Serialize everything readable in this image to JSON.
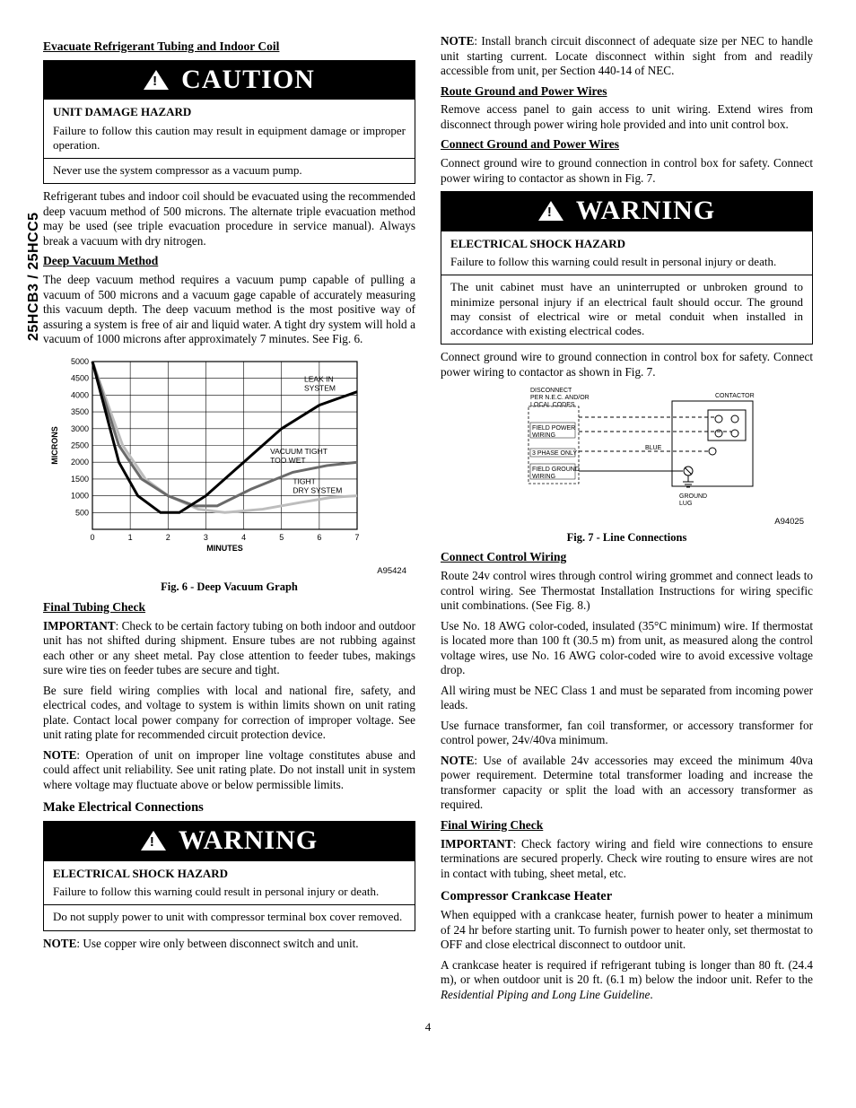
{
  "side_tab": "25HCB3 / 25HCC5",
  "page_number": "4",
  "left": {
    "h1": "Evacuate Refrigerant Tubing and Indoor Coil",
    "caution": {
      "banner": "CAUTION",
      "hazard": "UNIT DAMAGE HAZARD",
      "p1": "Failure to follow this caution may result in equipment damage or improper operation.",
      "p2": "Never use the system compressor as a vacuum pump."
    },
    "p_evac": "Refrigerant tubes and indoor coil should be evacuated using the recommended deep vacuum method of 500 microns. The alternate triple evacuation method may be used (see triple evacuation procedure in service manual). Always break a vacuum with dry nitrogen.",
    "h2": "Deep Vacuum Method",
    "p_deep": "The deep vacuum method requires a vacuum pump capable of pulling a vacuum of 500 microns and a vacuum gage capable of accurately measuring this vacuum depth. The deep vacuum method is the most positive way of assuring a system is free of air and liquid water. A tight dry system will hold a vacuum of 1000 microns after approximately 7 minutes.  See Fig. 6.",
    "chart": {
      "y_label": "MICRONS",
      "x_label": "MINUTES",
      "y_ticks": [
        "500",
        "1000",
        "1500",
        "2000",
        "2500",
        "3000",
        "3500",
        "4000",
        "4500",
        "5000"
      ],
      "x_ticks": [
        "0",
        "1",
        "2",
        "3",
        "4",
        "5",
        "6",
        "7"
      ],
      "ylim": [
        0,
        5000
      ],
      "xlim": [
        0,
        7
      ],
      "annotations": {
        "leak": "LEAK IN\nSYSTEM",
        "wet": "VACUUM TIGHT\nTOO WET",
        "dry": "TIGHT\nDRY SYSTEM"
      },
      "series": {
        "leak": {
          "color": "#000000",
          "width": 3,
          "points": [
            [
              0,
              5000
            ],
            [
              0.7,
              2000
            ],
            [
              1.2,
              1000
            ],
            [
              1.8,
              500
            ],
            [
              2.3,
              500
            ],
            [
              3.0,
              1000
            ],
            [
              4.0,
              2000
            ],
            [
              5.0,
              3000
            ],
            [
              6.0,
              3700
            ],
            [
              7.0,
              4100
            ]
          ]
        },
        "wet": {
          "color": "#6a6a6a",
          "width": 3,
          "points": [
            [
              0,
              5000
            ],
            [
              0.7,
              2500
            ],
            [
              1.3,
              1500
            ],
            [
              2.0,
              1000
            ],
            [
              2.7,
              700
            ],
            [
              3.3,
              700
            ],
            [
              4.2,
              1200
            ],
            [
              5.3,
              1700
            ],
            [
              6.2,
              1900
            ],
            [
              7.0,
              2000
            ]
          ]
        },
        "dry": {
          "color": "#bdbdbd",
          "width": 3,
          "points": [
            [
              0,
              5000
            ],
            [
              0.8,
              2500
            ],
            [
              1.4,
              1500
            ],
            [
              2.0,
              1000
            ],
            [
              2.8,
              600
            ],
            [
              3.5,
              500
            ],
            [
              4.5,
              600
            ],
            [
              5.5,
              800
            ],
            [
              6.3,
              950
            ],
            [
              7.0,
              1000
            ]
          ]
        }
      },
      "grid_color": "#000000",
      "bg": "#ffffff"
    },
    "fig6_id": "A95424",
    "fig6_caption": "Fig. 6 - Deep Vacuum Graph",
    "h3": "Final Tubing Check",
    "p_ft1_lead": "IMPORTANT",
    "p_ft1": ": Check to be certain factory tubing on both indoor and outdoor unit has not shifted during shipment. Ensure tubes are not rubbing against each other or any sheet metal. Pay close attention to feeder tubes, makings sure wire ties on feeder tubes are secure and tight.",
    "p_ft2": "Be sure field wiring complies with local and national fire, safety, and electrical codes, and voltage to system is within limits shown on unit rating plate. Contact local power company for correction of improper voltage. See unit rating plate for recommended circuit protection device.",
    "p_ft3_lead": "NOTE",
    "p_ft3": ":  Operation of unit on improper line voltage constitutes abuse and could affect unit reliability. See unit rating plate. Do  not install unit in system where voltage may fluctuate above or below permissible limits.",
    "h4": "Make Electrical Connections",
    "warning": {
      "banner": "WARNING",
      "hazard": "ELECTRICAL SHOCK HAZARD",
      "p1": "Failure to follow this warning could result in personal injury or death.",
      "p2": "Do not supply power to unit with compressor terminal box cover removed."
    },
    "p_note_copper_lead": "NOTE",
    "p_note_copper": ":  Use copper wire only between disconnect switch and unit."
  },
  "right": {
    "p_note_branch_lead": "NOTE",
    "p_note_branch": ": Install branch circuit disconnect of adequate size per NEC to handle unit starting current. Locate disconnect within sight from and readily accessible from unit, per Section 440-14 of NEC.",
    "h1": "Route Ground and Power Wires",
    "p_route": "Remove access panel to gain access to unit wiring. Extend wires from disconnect through power wiring hole provided and into unit control box.",
    "h2": "Connect Ground and Power Wires",
    "p_conn1": "Connect ground wire to ground connection in control box for safety. Connect power wiring to contactor as shown in Fig. 7.",
    "warning": {
      "banner": "WARNING",
      "hazard": "ELECTRICAL SHOCK HAZARD",
      "p1": "Failure to follow this warning could result in personal injury or death.",
      "p2": "The unit cabinet must have an uninterrupted or unbroken ground to minimize personal injury if an electrical fault should occur. The ground may consist of electrical wire or metal conduit when installed in accordance with existing electrical codes."
    },
    "p_conn2": "Connect ground wire to ground connection in control box for safety. Connect power wiring to contactor as shown in Fig. 7.",
    "diagram": {
      "labels": {
        "disconnect": "DISCONNECT\nPER N.E.C. AND/OR\nLOCAL CODES",
        "contactor": "CONTACTOR",
        "field_power": "FIELD POWER\nWIRING",
        "three_phase": "3 PHASE ONLY",
        "blue": "BLUE",
        "field_ground": "FIELD GROUND\nWIRING",
        "ground_lug": "GROUND\nLUG"
      }
    },
    "fig7_id": "A94025",
    "fig7_caption": "Fig. 7 - Line Connections",
    "h3": "Connect Control Wiring",
    "p_cc1": "Route 24v control wires through control wiring grommet and connect leads to control wiring. See Thermostat Installation Instructions for wiring specific unit combinations. (See Fig. 8.)",
    "p_cc2": "Use No. 18 AWG color-coded, insulated (35°C minimum) wire. If thermostat is located more than 100 ft (30.5 m) from unit, as measured along the control voltage wires, use No. 16 AWG color-coded wire to avoid excessive voltage drop.",
    "p_cc3": "All wiring must be NEC Class 1 and must be separated from incoming power leads.",
    "p_cc4": "Use furnace transformer, fan coil transformer, or accessory transformer for control power, 24v/40va minimum.",
    "p_cc5_lead": "NOTE",
    "p_cc5": ":   Use of available 24v accessories may exceed the minimum 40va power requirement. Determine total  transformer loading and increase the transformer capacity or split the load with an accessory transformer as required.",
    "h4": "Final Wiring Check",
    "p_fw_lead": "IMPORTANT",
    "p_fw": ": Check factory wiring and field wire connections to ensure terminations are secured properly. Check wire routing to ensure wires are not in contact with tubing, sheet metal, etc.",
    "h5": "Compressor Crankcase Heater",
    "p_cch1": "When equipped with a crankcase heater, furnish power to heater a minimum of 24 hr before starting unit. To furnish power to heater only, set thermostat to OFF and close electrical disconnect to outdoor unit.",
    "p_cch2a": "A crankcase heater is required if refrigerant tubing is longer than 80 ft. (24.4 m), or when outdoor unit is 20 ft. (6.1 m) below the indoor unit.   Refer to the ",
    "p_cch2b": "Residential Piping and Long Line Guideline",
    "p_cch2c": "."
  }
}
